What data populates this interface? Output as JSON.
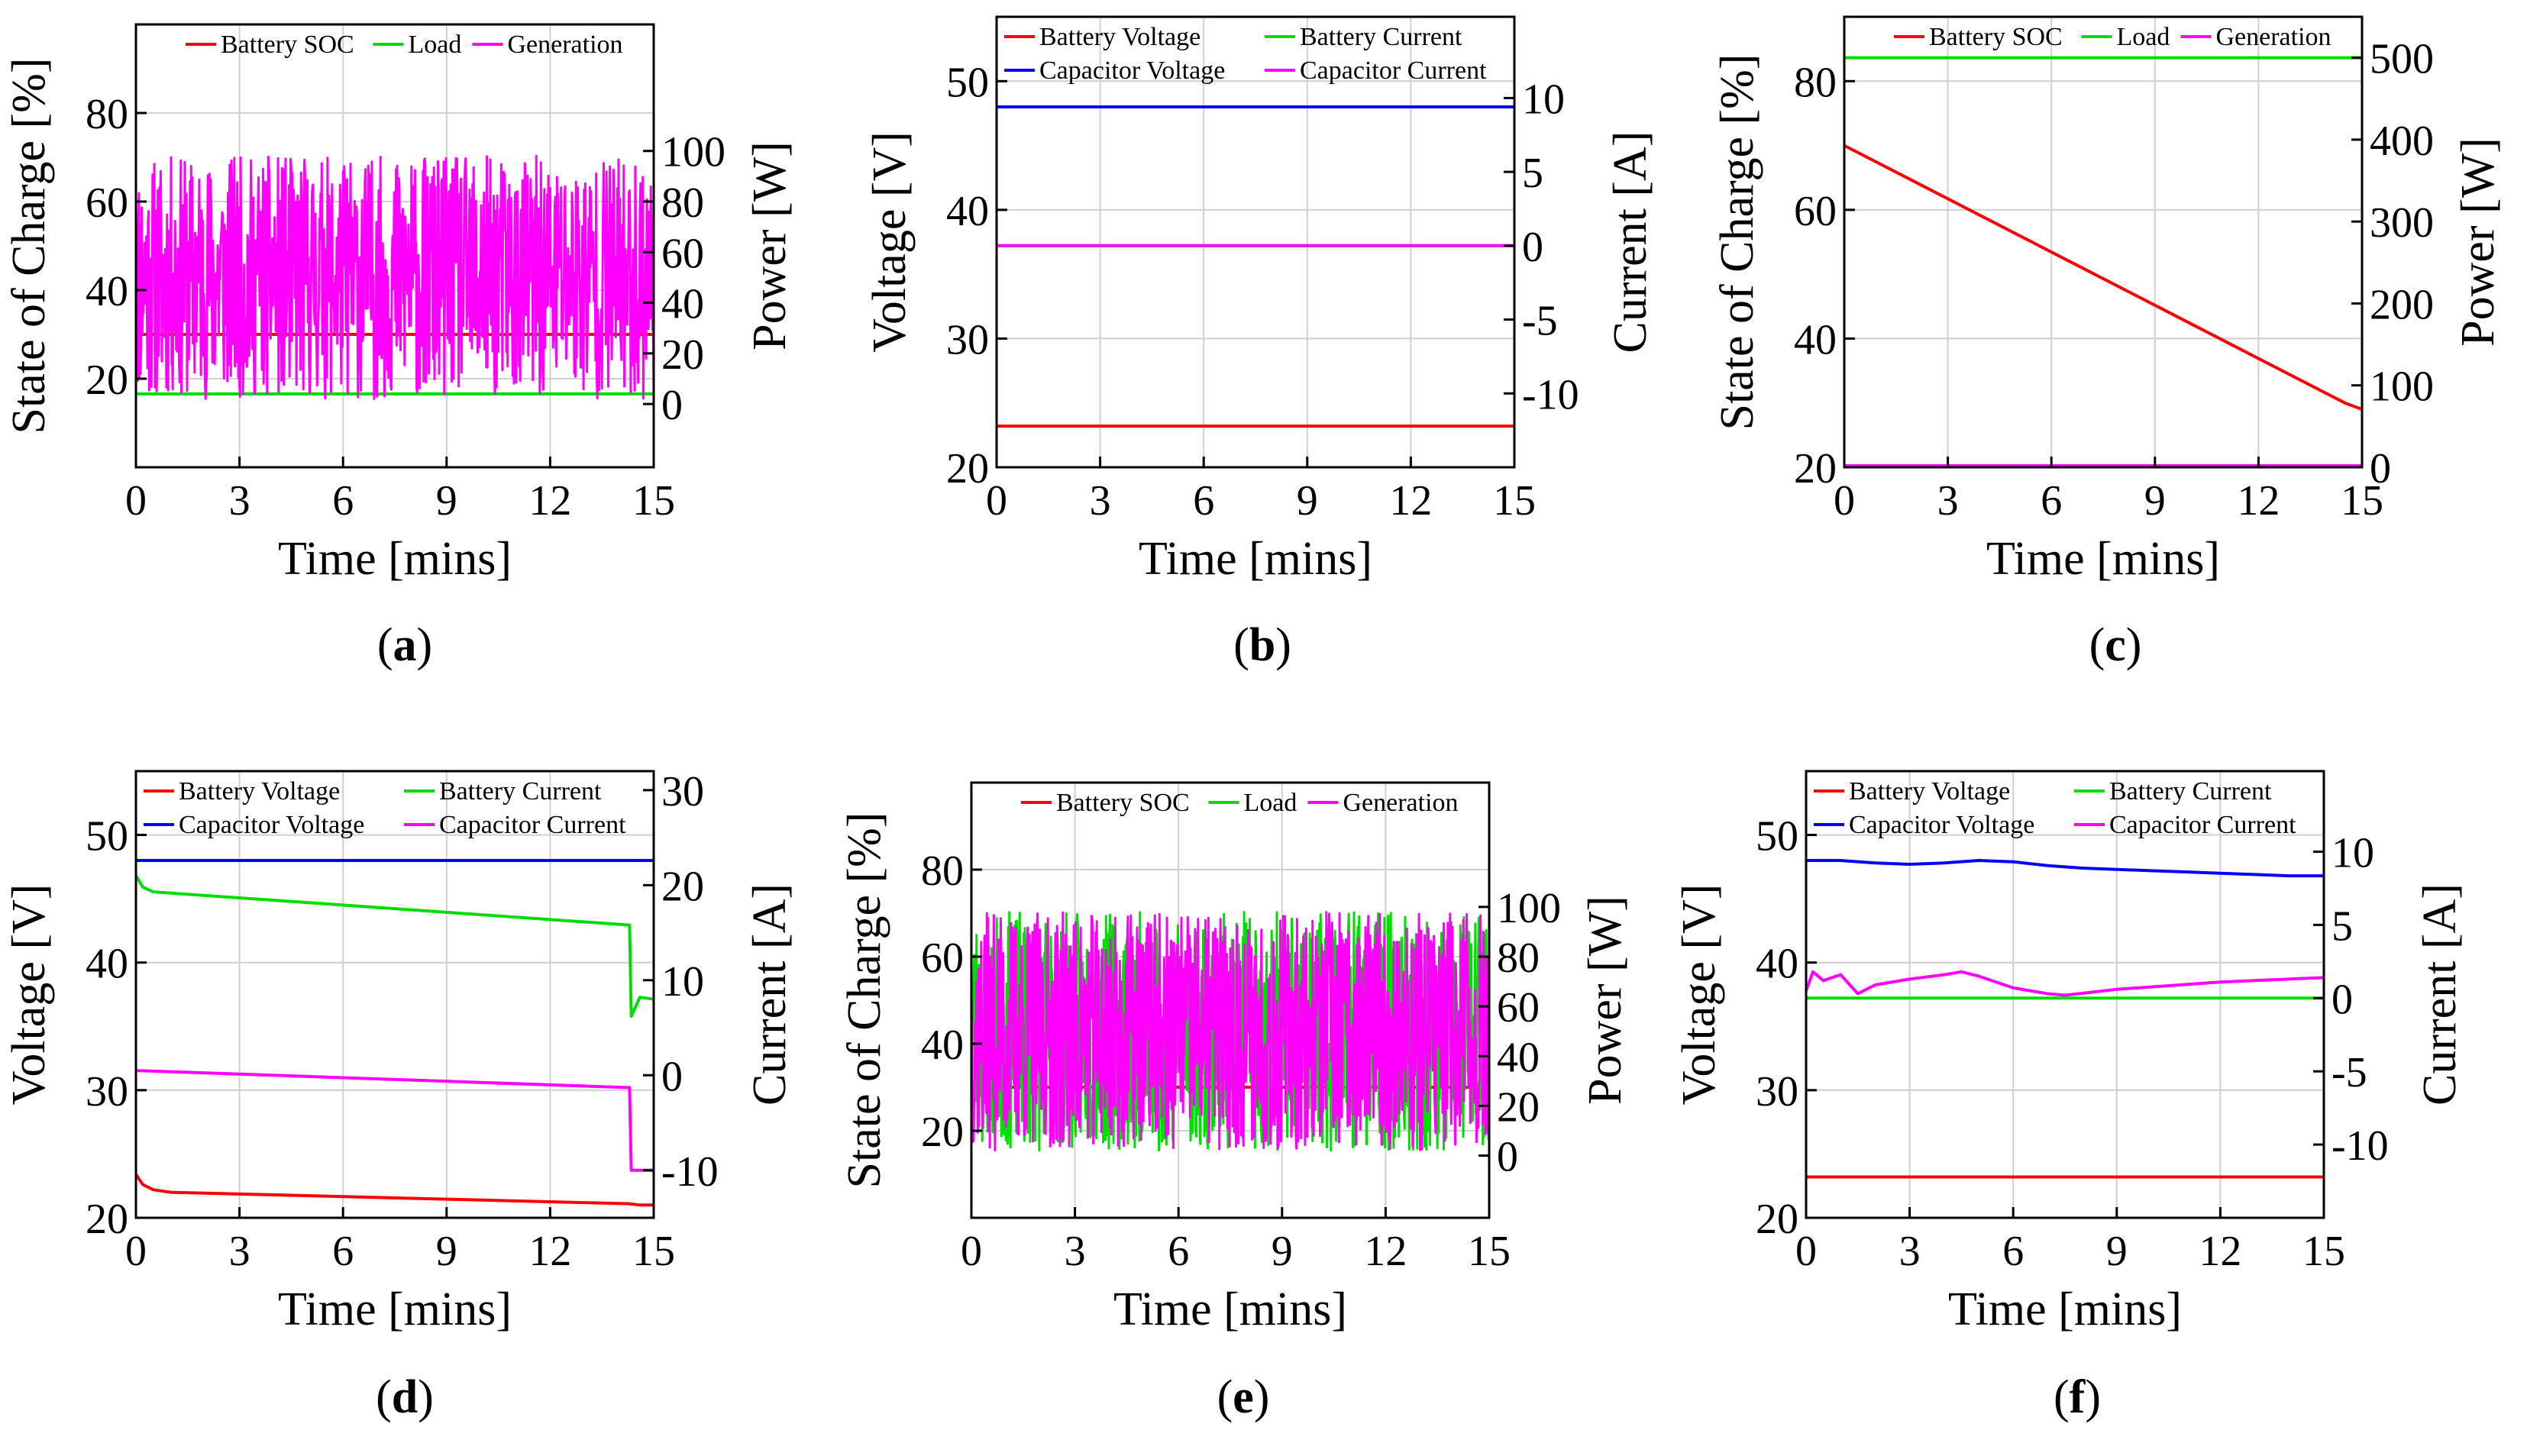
{
  "chart_data": [
    {
      "id": "a",
      "type": "line",
      "caption": "(a)",
      "xlabel": "Time  [mins]",
      "xlim": [
        0,
        15
      ],
      "xticks": [
        "0",
        "3",
        "6",
        "9",
        "12",
        "15"
      ],
      "left_axis": {
        "label": "State of Charge [%]",
        "ylim": [
          0,
          100
        ],
        "ticks": [
          "20",
          "40",
          "60",
          "80"
        ],
        "tick_values": [
          20,
          40,
          60,
          80
        ]
      },
      "right_axis": {
        "label": "Power [W]",
        "ylim": [
          -25,
          150
        ],
        "ticks": [
          "0",
          "20",
          "40",
          "60",
          "80",
          "100"
        ],
        "tick_values": [
          0,
          20,
          40,
          60,
          80,
          100
        ]
      },
      "legend_rows": [
        [
          "Battery SOC",
          "Load",
          "Generation"
        ]
      ],
      "series": [
        {
          "name": "Battery SOC",
          "color": "#ff0000",
          "axis": "left",
          "kind": "line",
          "x": [
            0,
            15
          ],
          "y": [
            30,
            30
          ]
        },
        {
          "name": "Load",
          "color": "#00dd00",
          "axis": "right",
          "kind": "line",
          "x": [
            0,
            15
          ],
          "y": [
            4,
            4
          ]
        },
        {
          "name": "Generation",
          "color": "#ff00ff",
          "axis": "right",
          "kind": "noise",
          "min": 0,
          "max": 100,
          "center": 50,
          "amp": 48,
          "samples": 900,
          "seed": 11
        }
      ]
    },
    {
      "id": "b",
      "type": "line",
      "caption": "(b)",
      "xlabel": "Time  [mins]",
      "xlim": [
        0,
        15
      ],
      "xticks": [
        "0",
        "3",
        "6",
        "9",
        "12",
        "15"
      ],
      "left_axis": {
        "label": "Voltage [V]",
        "ylim": [
          20,
          55
        ],
        "ticks": [
          "20",
          "30",
          "40",
          "50"
        ],
        "tick_values": [
          20,
          30,
          40,
          50
        ]
      },
      "right_axis": {
        "label": "Current [A]",
        "ylim": [
          -15,
          15.5
        ],
        "ticks": [
          "-10",
          "-5",
          "0",
          "5",
          "10"
        ],
        "tick_values": [
          -10,
          -5,
          0,
          5,
          10
        ]
      },
      "legend_rows": [
        [
          "Battery Voltage",
          "Battery Current"
        ],
        [
          "Capacitor Voltage",
          "Capacitor Current"
        ]
      ],
      "series": [
        {
          "name": "Battery Voltage",
          "color": "#ff0000",
          "axis": "left",
          "kind": "line",
          "x": [
            0,
            15
          ],
          "y": [
            23.2,
            23.2
          ]
        },
        {
          "name": "Battery Current",
          "color": "#00dd00",
          "axis": "right",
          "kind": "line",
          "x": [
            0,
            15
          ],
          "y": [
            0,
            0
          ]
        },
        {
          "name": "Capacitor Voltage",
          "color": "#0000ff",
          "axis": "left",
          "kind": "line",
          "x": [
            0,
            15
          ],
          "y": [
            48,
            48
          ]
        },
        {
          "name": "Capacitor Current",
          "color": "#ff00ff",
          "axis": "right",
          "kind": "line",
          "x": [
            0,
            15
          ],
          "y": [
            0,
            0
          ]
        }
      ]
    },
    {
      "id": "c",
      "type": "line",
      "caption": "(c)",
      "xlabel": "Time  [mins]",
      "xlim": [
        0,
        15
      ],
      "xticks": [
        "0",
        "3",
        "6",
        "9",
        "12",
        "15"
      ],
      "left_axis": {
        "label": "State of Charge [%]",
        "ylim": [
          20,
          90
        ],
        "ticks": [
          "20",
          "40",
          "60",
          "80"
        ],
        "tick_values": [
          20,
          40,
          60,
          80
        ]
      },
      "right_axis": {
        "label": "Power [W]",
        "ylim": [
          0,
          550
        ],
        "ticks": [
          "0",
          "100",
          "200",
          "300",
          "400",
          "500"
        ],
        "tick_values": [
          0,
          100,
          200,
          300,
          400,
          500
        ]
      },
      "legend_rows": [
        [
          "Battery SOC",
          "Load",
          "Generation"
        ]
      ],
      "series": [
        {
          "name": "Battery SOC",
          "color": "#ff0000",
          "axis": "left",
          "kind": "line",
          "x": [
            0,
            14.5,
            15
          ],
          "y": [
            70,
            30,
            29
          ]
        },
        {
          "name": "Load",
          "color": "#00dd00",
          "axis": "right",
          "kind": "line",
          "x": [
            0,
            15
          ],
          "y": [
            500,
            500
          ]
        },
        {
          "name": "Generation",
          "color": "#ff00ff",
          "axis": "right",
          "kind": "line",
          "x": [
            0,
            15
          ],
          "y": [
            2,
            2
          ]
        }
      ]
    },
    {
      "id": "d",
      "type": "line",
      "caption": "(d)",
      "xlabel": "Time  [mins]",
      "xlim": [
        0,
        15
      ],
      "xticks": [
        "0",
        "3",
        "6",
        "9",
        "12",
        "15"
      ],
      "left_axis": {
        "label": "Voltage [V]",
        "ylim": [
          20,
          55
        ],
        "ticks": [
          "20",
          "30",
          "40",
          "50"
        ],
        "tick_values": [
          20,
          30,
          40,
          50
        ]
      },
      "right_axis": {
        "label": "Current [A]",
        "ylim": [
          -15,
          32
        ],
        "ticks": [
          "-10",
          "0",
          "10",
          "20",
          "30"
        ],
        "tick_values": [
          -10,
          0,
          10,
          20,
          30
        ]
      },
      "legend_rows": [
        [
          "Battery Voltage",
          "Battery Current"
        ],
        [
          "Capacitor Voltage",
          "Capacitor Current"
        ]
      ],
      "series": [
        {
          "name": "Battery Voltage",
          "color": "#ff0000",
          "axis": "left",
          "kind": "line",
          "x": [
            0,
            0.2,
            0.5,
            1,
            14.3,
            14.6,
            15
          ],
          "y": [
            23.4,
            22.6,
            22.2,
            22.0,
            21.1,
            21.0,
            21.0
          ]
        },
        {
          "name": "Battery Current",
          "color": "#00dd00",
          "axis": "right",
          "kind": "line",
          "x": [
            0,
            0.2,
            0.5,
            14.3,
            14.35,
            14.6,
            15
          ],
          "y": [
            21,
            19.8,
            19.3,
            15.8,
            6.2,
            8.2,
            8.0
          ]
        },
        {
          "name": "Capacitor Voltage",
          "color": "#0000ff",
          "axis": "left",
          "kind": "line",
          "x": [
            0,
            15
          ],
          "y": [
            48,
            48
          ]
        },
        {
          "name": "Capacitor Current",
          "color": "#ff00ff",
          "axis": "right",
          "kind": "line",
          "x": [
            0,
            14.3,
            14.35,
            15
          ],
          "y": [
            0.5,
            -1.3,
            -10,
            -10
          ]
        }
      ]
    },
    {
      "id": "e",
      "type": "line",
      "caption": "(e)",
      "xlabel": "Time  [mins]",
      "xlim": [
        0,
        15
      ],
      "xticks": [
        "0",
        "3",
        "6",
        "9",
        "12",
        "15"
      ],
      "left_axis": {
        "label": "State of Charge [%]",
        "ylim": [
          0,
          100
        ],
        "ticks": [
          "20",
          "40",
          "60",
          "80"
        ],
        "tick_values": [
          20,
          40,
          60,
          80
        ]
      },
      "right_axis": {
        "label": "Power [W]",
        "ylim": [
          -25,
          150
        ],
        "ticks": [
          "0",
          "20",
          "40",
          "60",
          "80",
          "100"
        ],
        "tick_values": [
          0,
          20,
          40,
          60,
          80,
          100
        ]
      },
      "legend_rows": [
        [
          "Battery SOC",
          "Load",
          "Generation"
        ]
      ],
      "series": [
        {
          "name": "Battery SOC",
          "color": "#ff0000",
          "axis": "left",
          "kind": "line",
          "x": [
            0,
            15
          ],
          "y": [
            30,
            30
          ]
        },
        {
          "name": "Load",
          "color": "#00dd00",
          "axis": "right",
          "kind": "noise",
          "min": 0,
          "max": 100,
          "center": 50,
          "amp": 48,
          "samples": 900,
          "seed": 23
        },
        {
          "name": "Generation",
          "color": "#ff00ff",
          "axis": "right",
          "kind": "noise",
          "min": 0,
          "max": 100,
          "center": 50,
          "amp": 48,
          "samples": 900,
          "seed": 37
        }
      ]
    },
    {
      "id": "f",
      "type": "line",
      "caption": "(f)",
      "xlabel": "Time  [mins]",
      "xlim": [
        0,
        15
      ],
      "xticks": [
        "0",
        "3",
        "6",
        "9",
        "12",
        "15"
      ],
      "left_axis": {
        "label": "Voltage [V]",
        "ylim": [
          20,
          55
        ],
        "ticks": [
          "20",
          "30",
          "40",
          "50"
        ],
        "tick_values": [
          20,
          30,
          40,
          50
        ]
      },
      "right_axis": {
        "label": "Current [A]",
        "ylim": [
          -15,
          15.5
        ],
        "ticks": [
          "-10",
          "-5",
          "0",
          "5",
          "10"
        ],
        "tick_values": [
          -10,
          -5,
          0,
          5,
          10
        ]
      },
      "legend_rows": [
        [
          "Battery Voltage",
          "Battery Current"
        ],
        [
          "Capacitor Voltage",
          "Capacitor Current"
        ]
      ],
      "series": [
        {
          "name": "Battery Voltage",
          "color": "#ff0000",
          "axis": "left",
          "kind": "line",
          "x": [
            0,
            15
          ],
          "y": [
            23.2,
            23.2
          ]
        },
        {
          "name": "Battery Current",
          "color": "#00dd00",
          "axis": "right",
          "kind": "line",
          "x": [
            0,
            15
          ],
          "y": [
            0,
            0
          ]
        },
        {
          "name": "Capacitor Voltage",
          "color": "#0000ff",
          "axis": "left",
          "kind": "line",
          "x": [
            0,
            1,
            2,
            3,
            4,
            5,
            6,
            7,
            8,
            9,
            10,
            11,
            12,
            13,
            14,
            15
          ],
          "y": [
            48.0,
            48.0,
            47.8,
            47.7,
            47.8,
            48.0,
            47.9,
            47.6,
            47.4,
            47.3,
            47.2,
            47.1,
            47.0,
            46.9,
            46.8,
            46.8
          ]
        },
        {
          "name": "Capacitor Current",
          "color": "#ff00ff",
          "axis": "right",
          "kind": "line",
          "x": [
            0,
            0.2,
            0.5,
            1,
            1.5,
            2,
            3,
            4,
            4.5,
            5,
            6,
            7,
            7.5,
            9,
            12,
            15
          ],
          "y": [
            0.5,
            1.8,
            1.2,
            1.6,
            0.3,
            0.9,
            1.3,
            1.6,
            1.8,
            1.5,
            0.7,
            0.3,
            0.2,
            0.6,
            1.1,
            1.4
          ]
        }
      ]
    }
  ]
}
